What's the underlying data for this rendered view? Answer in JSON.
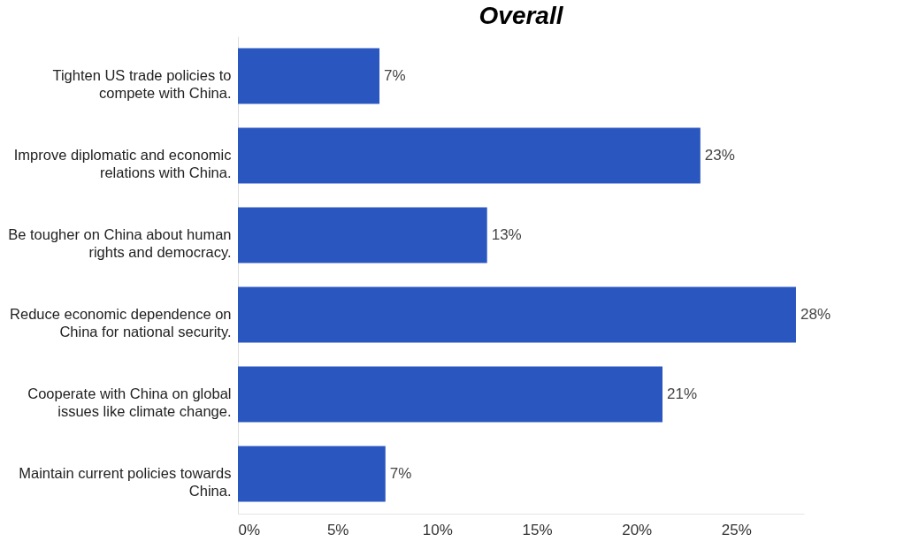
{
  "chart_data": {
    "type": "bar",
    "orientation": "horizontal",
    "title": "Overall",
    "categories": [
      "Tighten US trade policies to compete with China.",
      "Improve diplomatic and economic relations with China.",
      "Be tougher on China about human rights and democracy.",
      "Reduce economic dependence on China for national security.",
      "Cooperate with China on global issues like climate change.",
      "Maintain current policies towards China."
    ],
    "values": [
      7.1,
      23.2,
      12.5,
      28.0,
      21.3,
      7.4
    ],
    "value_labels": [
      "7%",
      "23%",
      "13%",
      "28%",
      "21%",
      "7%"
    ],
    "color": "#2a56c0",
    "xticks": [
      {
        "value": 0,
        "label": "0%"
      },
      {
        "value": 5,
        "label": "5%"
      },
      {
        "value": 10,
        "label": "10%"
      },
      {
        "value": 15,
        "label": "15%"
      },
      {
        "value": 20,
        "label": "20%"
      },
      {
        "value": 25,
        "label": "25%"
      }
    ],
    "xlim": [
      0,
      28.4
    ],
    "grid": false
  }
}
